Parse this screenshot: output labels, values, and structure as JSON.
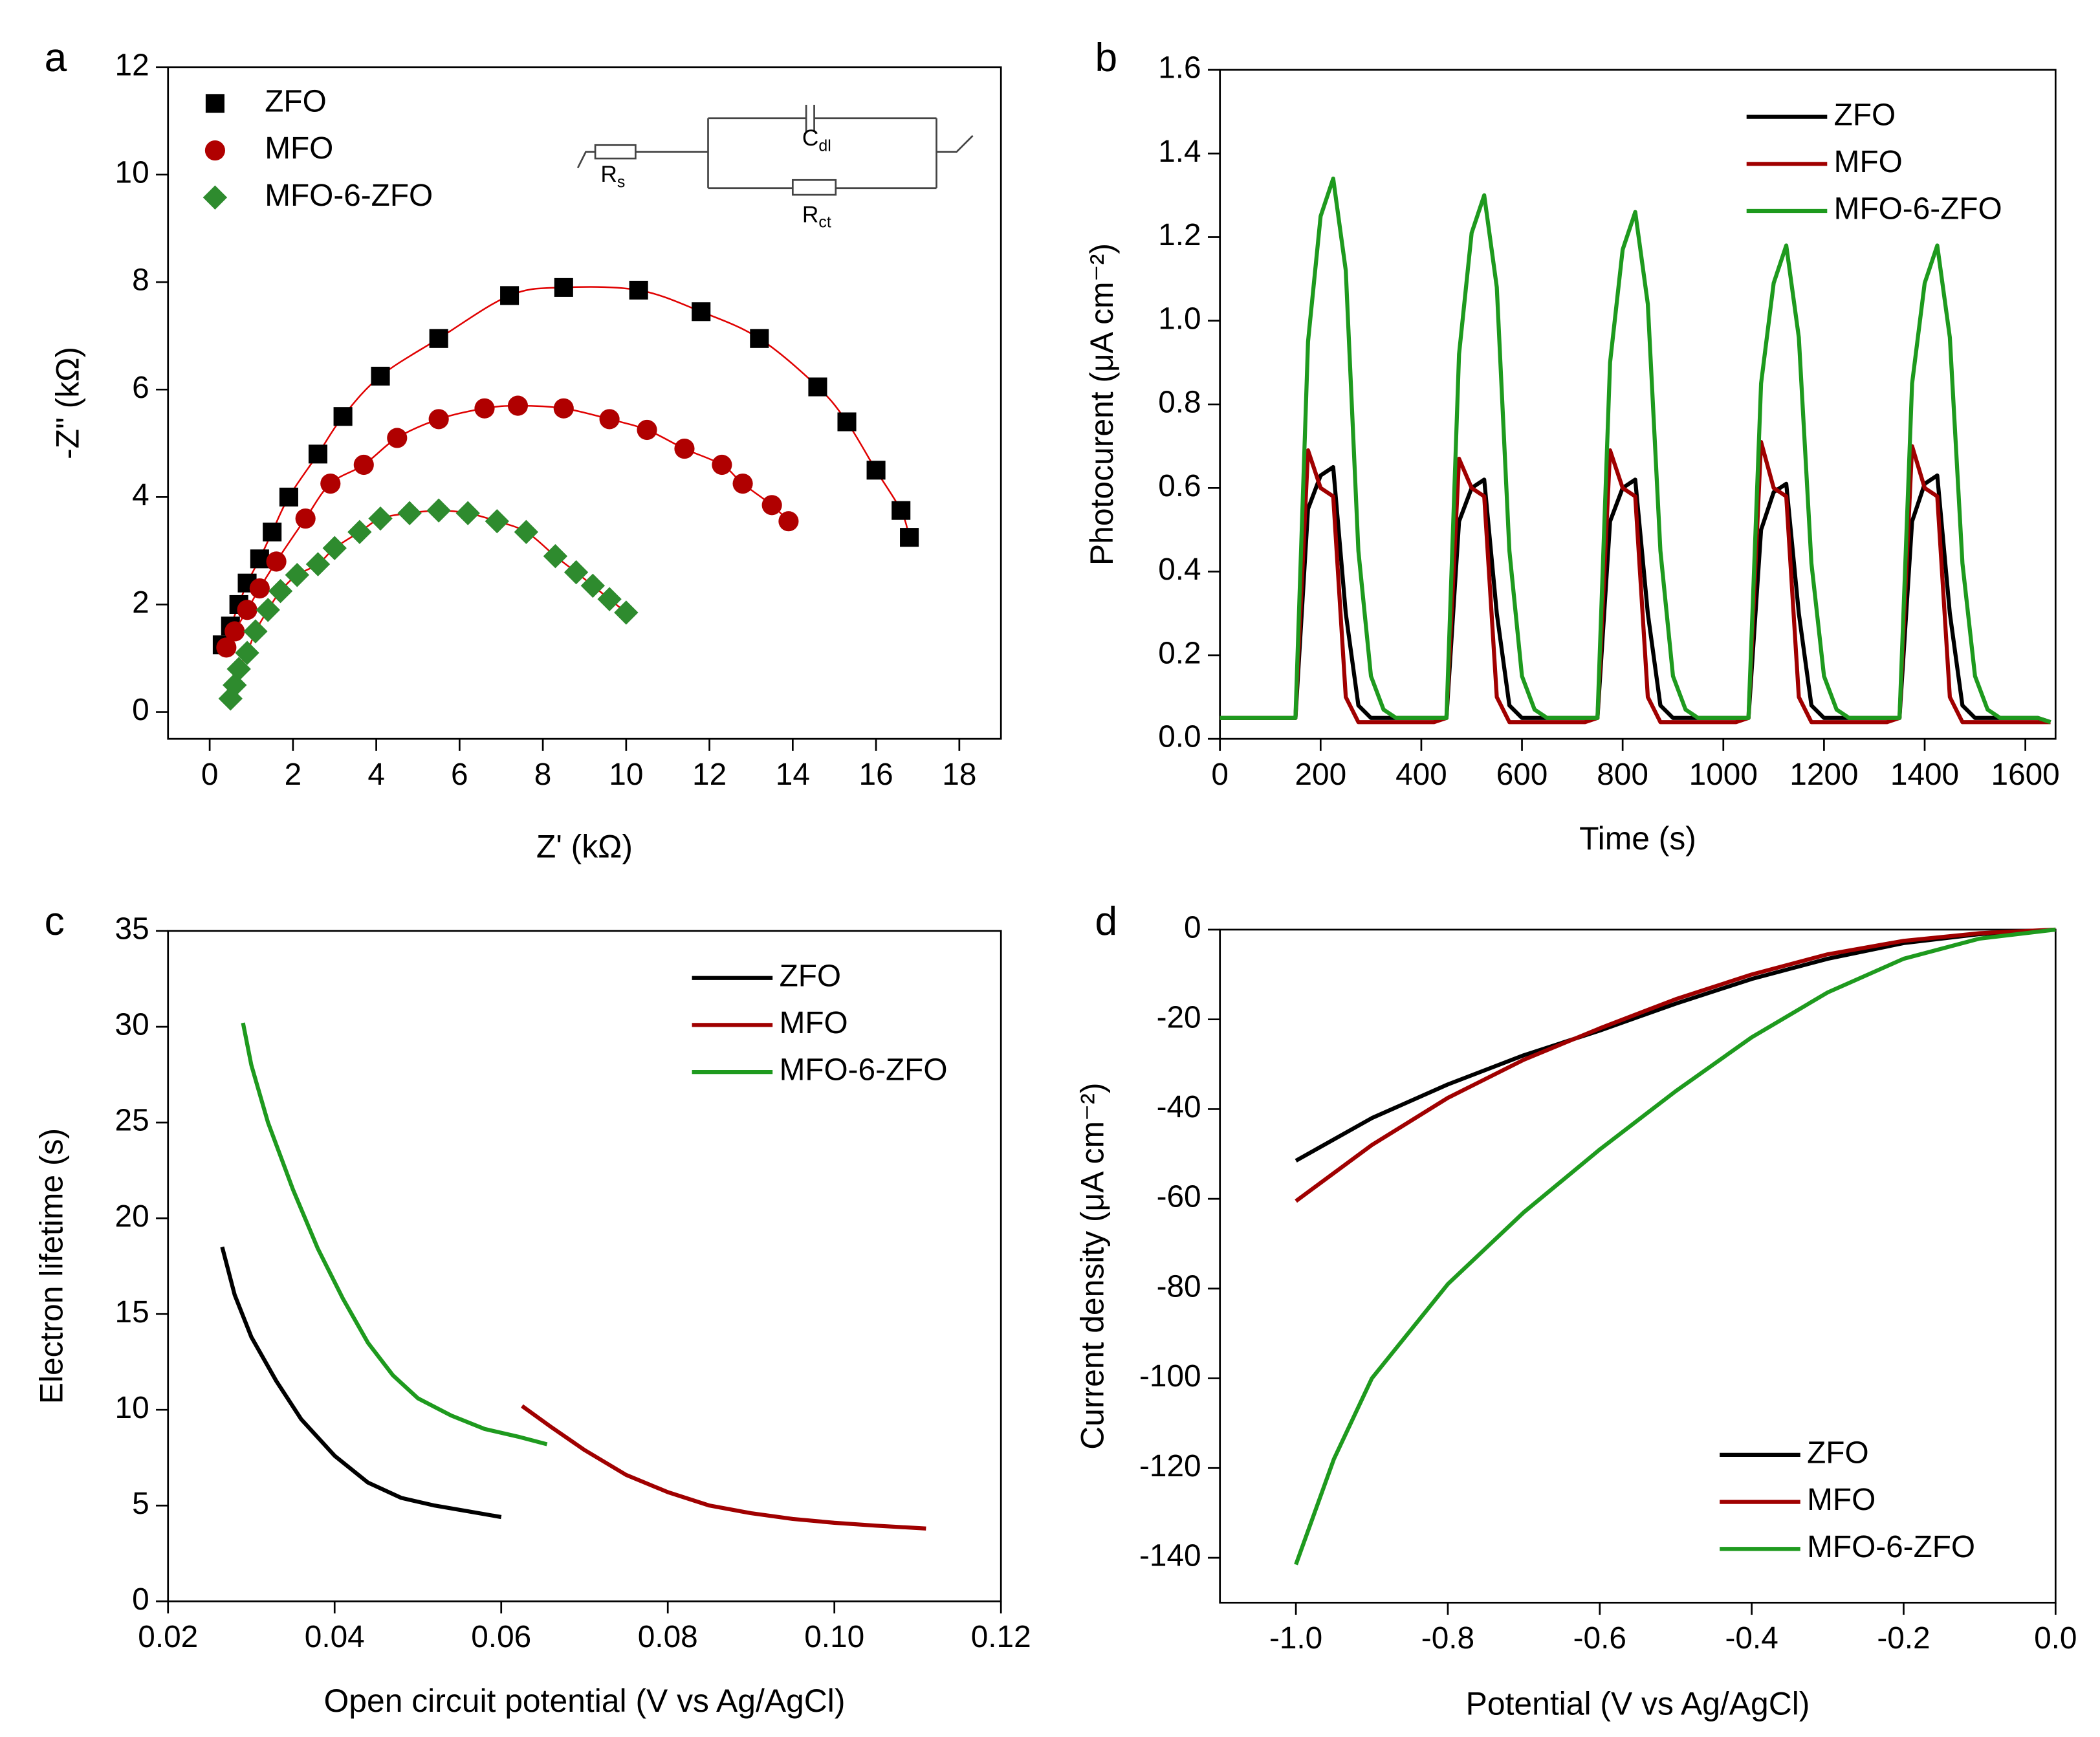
{
  "chart_data": [
    {
      "type": "scatter",
      "panel_label": "a",
      "xlabel": "Z' (kΩ)",
      "ylabel": "-Z\" (kΩ)",
      "xlim": [
        -1,
        19
      ],
      "ylim": [
        -0.5,
        12
      ],
      "xticks": [
        0,
        2,
        4,
        6,
        8,
        10,
        12,
        14,
        16,
        18
      ],
      "yticks": [
        0,
        2,
        4,
        6,
        8,
        10,
        12
      ],
      "legend": "upper left",
      "fit_color": "#e00000",
      "inset_labels": [
        {
          "main": "R",
          "sub": "s"
        },
        {
          "main": "C",
          "sub": "dl"
        },
        {
          "main": "R",
          "sub": "ct"
        }
      ],
      "series": [
        {
          "name": "ZFO",
          "color": "#000000",
          "marker": "square",
          "x": [
            0.3,
            0.5,
            0.7,
            0.9,
            1.2,
            1.5,
            1.9,
            2.6,
            3.2,
            4.1,
            5.5,
            7.2,
            8.5,
            10.3,
            11.8,
            13.2,
            14.6,
            15.3,
            16.0,
            16.6,
            16.8
          ],
          "values": [
            1.25,
            1.6,
            2.0,
            2.4,
            2.85,
            3.35,
            4.0,
            4.8,
            5.5,
            6.25,
            6.95,
            7.75,
            7.9,
            7.85,
            7.45,
            6.95,
            6.05,
            5.4,
            4.5,
            3.75,
            3.25
          ]
        },
        {
          "name": "MFO",
          "color": "#b00000",
          "marker": "circle",
          "x": [
            0.4,
            0.6,
            0.9,
            1.2,
            1.6,
            2.3,
            2.9,
            3.7,
            4.5,
            5.5,
            6.6,
            7.4,
            8.5,
            9.6,
            10.5,
            11.4,
            12.3,
            12.8,
            13.5,
            13.9
          ],
          "values": [
            1.2,
            1.5,
            1.9,
            2.3,
            2.8,
            3.6,
            4.25,
            4.6,
            5.1,
            5.45,
            5.65,
            5.7,
            5.65,
            5.45,
            5.25,
            4.9,
            4.6,
            4.25,
            3.85,
            3.55
          ]
        },
        {
          "name": "MFO-6-ZFO",
          "color": "#2e8b2e",
          "marker": "diamond",
          "x": [
            0.5,
            0.6,
            0.7,
            0.9,
            1.1,
            1.4,
            1.7,
            2.1,
            2.6,
            3.0,
            3.6,
            4.1,
            4.8,
            5.5,
            6.2,
            6.9,
            7.6,
            8.3,
            8.8,
            9.2,
            9.6,
            10.0
          ],
          "values": [
            0.25,
            0.5,
            0.8,
            1.1,
            1.5,
            1.9,
            2.25,
            2.55,
            2.75,
            3.05,
            3.35,
            3.6,
            3.7,
            3.75,
            3.7,
            3.55,
            3.35,
            2.9,
            2.6,
            2.35,
            2.1,
            1.85
          ]
        }
      ]
    },
    {
      "type": "line",
      "panel_label": "b",
      "xlabel": "Time (s)",
      "ylabel": "Photocurent (μA cm⁻²)",
      "xlim": [
        0,
        1660
      ],
      "ylim": [
        0,
        1.6
      ],
      "xticks": [
        0,
        200,
        400,
        600,
        800,
        1000,
        1200,
        1400,
        1600
      ],
      "yticks": [
        {
          "value": 0,
          "label": "0.0"
        },
        0.2,
        0.4,
        0.6,
        0.8,
        {
          "value": 1,
          "label": "1.0"
        },
        1.2,
        1.4,
        1.6
      ],
      "legend": "upper right",
      "x": [
        0,
        25,
        50,
        75,
        100,
        125,
        150,
        175,
        200,
        225,
        250,
        275,
        300,
        325,
        350,
        375,
        400,
        425,
        450,
        475,
        500,
        525,
        550,
        575,
        600,
        625,
        650,
        675,
        700,
        725,
        750,
        775,
        800,
        825,
        850,
        875,
        900,
        925,
        950,
        975,
        1000,
        1025,
        1050,
        1075,
        1100,
        1125,
        1150,
        1175,
        1200,
        1225,
        1250,
        1275,
        1300,
        1325,
        1350,
        1375,
        1400,
        1425,
        1450,
        1475,
        1500,
        1525,
        1550,
        1575,
        1600,
        1625,
        1650
      ],
      "series": [
        {
          "name": "ZFO",
          "color": "#000000",
          "values": [
            0.05,
            0.05,
            0.05,
            0.05,
            0.05,
            0.05,
            0.05,
            0.55,
            0.63,
            0.65,
            0.3,
            0.08,
            0.05,
            0.05,
            0.05,
            0.05,
            0.05,
            0.05,
            0.05,
            0.52,
            0.6,
            0.62,
            0.3,
            0.08,
            0.05,
            0.05,
            0.05,
            0.05,
            0.05,
            0.05,
            0.05,
            0.52,
            0.6,
            0.62,
            0.3,
            0.08,
            0.05,
            0.05,
            0.05,
            0.05,
            0.05,
            0.05,
            0.05,
            0.5,
            0.59,
            0.61,
            0.3,
            0.08,
            0.05,
            0.05,
            0.05,
            0.05,
            0.05,
            0.05,
            0.05,
            0.52,
            0.61,
            0.63,
            0.3,
            0.08,
            0.05,
            0.05,
            0.05,
            0.05,
            0.05,
            0.05,
            0.04
          ]
        },
        {
          "name": "MFO",
          "color": "#a00000",
          "values": [
            0.05,
            0.05,
            0.05,
            0.05,
            0.05,
            0.05,
            0.05,
            0.69,
            0.6,
            0.58,
            0.1,
            0.04,
            0.04,
            0.04,
            0.04,
            0.04,
            0.04,
            0.04,
            0.05,
            0.67,
            0.6,
            0.58,
            0.1,
            0.04,
            0.04,
            0.04,
            0.04,
            0.04,
            0.04,
            0.04,
            0.05,
            0.69,
            0.6,
            0.58,
            0.1,
            0.04,
            0.04,
            0.04,
            0.04,
            0.04,
            0.04,
            0.04,
            0.05,
            0.71,
            0.6,
            0.58,
            0.1,
            0.04,
            0.04,
            0.04,
            0.04,
            0.04,
            0.04,
            0.04,
            0.05,
            0.7,
            0.6,
            0.58,
            0.1,
            0.04,
            0.04,
            0.04,
            0.04,
            0.04,
            0.04,
            0.04,
            0.04
          ]
        },
        {
          "name": "MFO-6-ZFO",
          "color": "#1e9a1e",
          "values": [
            0.05,
            0.05,
            0.05,
            0.05,
            0.05,
            0.05,
            0.05,
            0.95,
            1.25,
            1.34,
            1.12,
            0.45,
            0.15,
            0.07,
            0.05,
            0.05,
            0.05,
            0.05,
            0.05,
            0.92,
            1.21,
            1.3,
            1.08,
            0.45,
            0.15,
            0.07,
            0.05,
            0.05,
            0.05,
            0.05,
            0.05,
            0.9,
            1.17,
            1.26,
            1.04,
            0.45,
            0.15,
            0.07,
            0.05,
            0.05,
            0.05,
            0.05,
            0.05,
            0.85,
            1.09,
            1.18,
            0.96,
            0.42,
            0.15,
            0.07,
            0.05,
            0.05,
            0.05,
            0.05,
            0.05,
            0.85,
            1.09,
            1.18,
            0.96,
            0.42,
            0.15,
            0.07,
            0.05,
            0.05,
            0.05,
            0.05,
            0.04
          ]
        }
      ]
    },
    {
      "type": "line",
      "panel_label": "c",
      "xlabel": "Open circuit potential (V vs Ag/AgCl)",
      "ylabel": "Electron lifetime (s)",
      "xlim": [
        0.02,
        0.12
      ],
      "ylim": [
        0,
        35
      ],
      "xticks": [
        0.02,
        0.04,
        0.06,
        0.08,
        {
          "value": 0.1,
          "label": "0.10"
        },
        0.12
      ],
      "yticks": [
        0,
        5,
        10,
        15,
        20,
        25,
        30,
        35
      ],
      "legend": "upper right",
      "series": [
        {
          "name": "ZFO",
          "color": "#000000",
          "x": [
            0.0265,
            0.028,
            0.03,
            0.033,
            0.036,
            0.04,
            0.044,
            0.048,
            0.052,
            0.056,
            0.06
          ],
          "values": [
            18.5,
            16,
            13.8,
            11.5,
            9.5,
            7.6,
            6.2,
            5.4,
            5.0,
            4.7,
            4.4
          ]
        },
        {
          "name": "MFO",
          "color": "#a00000",
          "x": [
            0.0625,
            0.066,
            0.07,
            0.075,
            0.08,
            0.085,
            0.09,
            0.095,
            0.1,
            0.105,
            0.111
          ],
          "values": [
            10.2,
            9.1,
            7.9,
            6.6,
            5.7,
            5.0,
            4.6,
            4.3,
            4.1,
            3.95,
            3.8
          ]
        },
        {
          "name": "MFO-6-ZFO",
          "color": "#1e9a1e",
          "x": [
            0.029,
            0.03,
            0.032,
            0.035,
            0.038,
            0.041,
            0.044,
            0.047,
            0.05,
            0.054,
            0.058,
            0.062,
            0.0655
          ],
          "values": [
            30.2,
            28,
            25,
            21.5,
            18.4,
            15.8,
            13.5,
            11.8,
            10.6,
            9.7,
            9.0,
            8.6,
            8.2
          ]
        }
      ]
    },
    {
      "type": "line",
      "panel_label": "d",
      "xlabel": "Potential (V vs Ag/AgCl)",
      "ylabel": "Current density (μA cm⁻²)",
      "xlim": [
        -1.1,
        0
      ],
      "ylim": [
        -150,
        0
      ],
      "xticks": [
        {
          "value": -1,
          "label": "-1.0"
        },
        -0.8,
        -0.6,
        -0.4,
        -0.2,
        {
          "value": 0,
          "label": "0.0"
        }
      ],
      "yticks": [
        0,
        -20,
        -40,
        -60,
        -80,
        -100,
        -120,
        -140
      ],
      "legend": "lower right",
      "series": [
        {
          "name": "ZFO",
          "color": "#000000",
          "x": [
            -1,
            -0.9,
            -0.8,
            -0.7,
            -0.6,
            -0.5,
            -0.4,
            -0.3,
            -0.2,
            -0.1,
            0
          ],
          "values": [
            -51.5,
            -42,
            -34.5,
            -28,
            -22.5,
            -16.5,
            -11,
            -6.5,
            -3,
            -1,
            0
          ]
        },
        {
          "name": "MFO",
          "color": "#a00000",
          "x": [
            -1,
            -0.9,
            -0.8,
            -0.7,
            -0.6,
            -0.5,
            -0.4,
            -0.3,
            -0.2,
            -0.1,
            0
          ],
          "values": [
            -60.5,
            -48,
            -37.5,
            -29,
            -22,
            -15.5,
            -10,
            -5.5,
            -2.5,
            -0.8,
            0
          ]
        },
        {
          "name": "MFO-6-ZFO",
          "color": "#1e9a1e",
          "x": [
            -1,
            -0.95,
            -0.9,
            -0.8,
            -0.7,
            -0.6,
            -0.5,
            -0.4,
            -0.3,
            -0.2,
            -0.1,
            0
          ],
          "values": [
            -141.5,
            -118,
            -100,
            -79,
            -63,
            -49,
            -36,
            -24,
            -14,
            -6.5,
            -2,
            0
          ]
        }
      ]
    }
  ]
}
